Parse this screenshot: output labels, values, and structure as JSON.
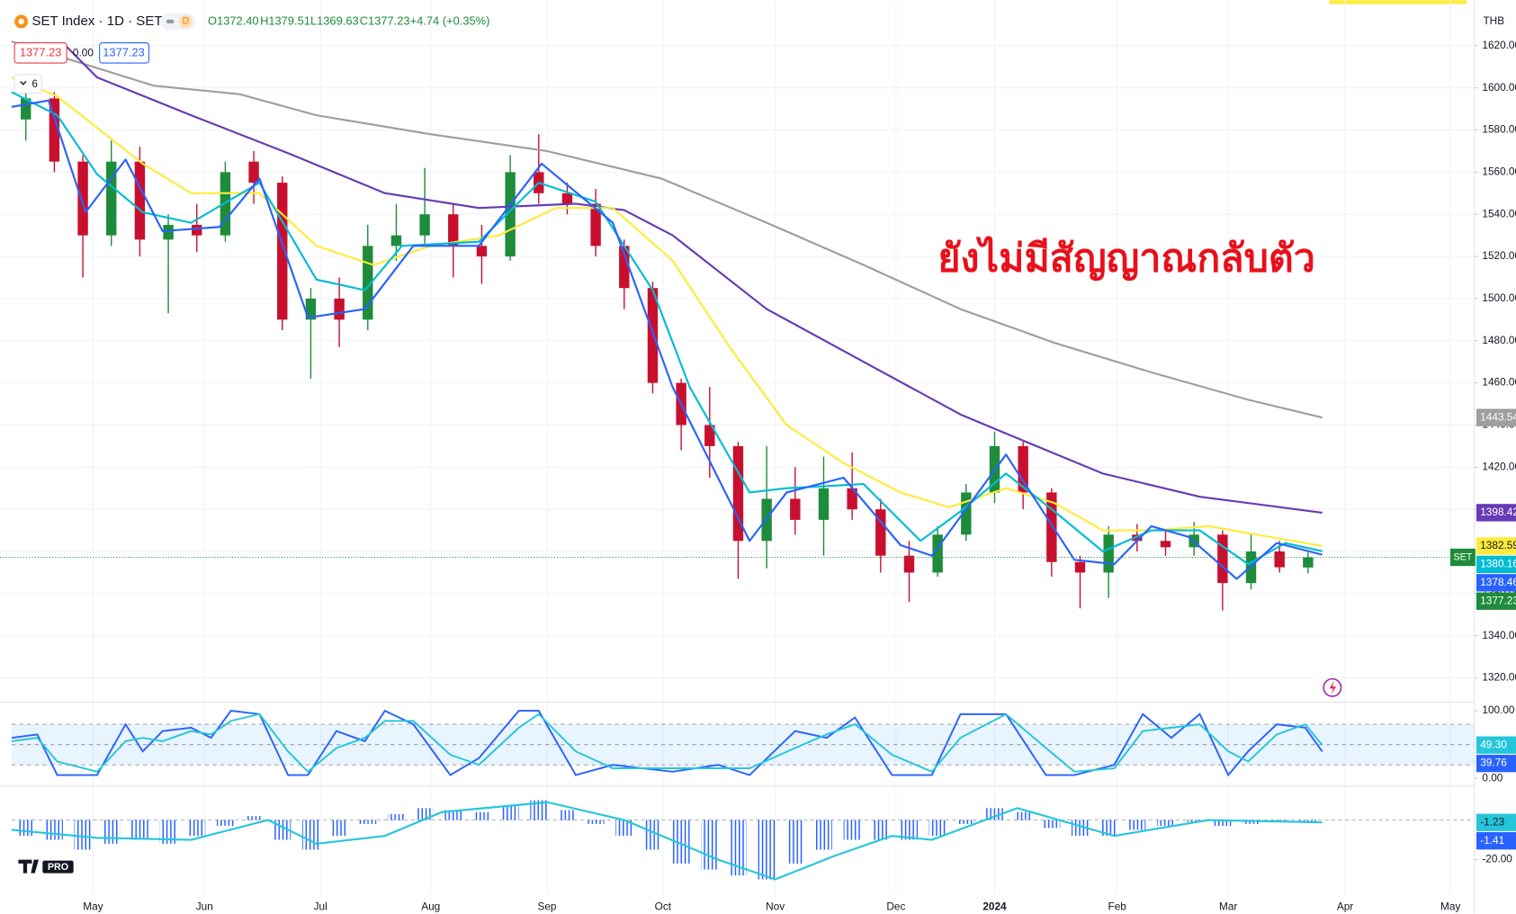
{
  "header": {
    "symbol": "SET Index · 1D · SET",
    "badge": "D",
    "ohlc": [
      "O1372.40",
      "H1379.51",
      "L1369.63",
      "C1377.23"
    ],
    "change": "+4.74 (+0.35%)"
  },
  "trade_panel": {
    "sell": "1377.23",
    "spread": "0.00",
    "buy": "1377.23"
  },
  "indicators_count": "6",
  "currency": "THB",
  "annotation": "ยังไม่มีสัญญาณกลับตัว",
  "logo_badge": "PRO",
  "chart_data": [
    {
      "type": "candlestick",
      "name": "SET",
      "up_color": "#1e8c3a",
      "down_color": "#c8102e",
      "open": [
        1585,
        1595,
        1565,
        1530,
        1565,
        1528,
        1535,
        1530,
        1565,
        1555,
        1490,
        1500,
        1490,
        1525,
        1530,
        1540,
        1525,
        1520,
        1560,
        1550,
        1545,
        1525,
        1505,
        1460,
        1440,
        1430,
        1385,
        1405,
        1395,
        1410,
        1400,
        1378,
        1370,
        1388,
        1408,
        1430,
        1408,
        1375,
        1370,
        1388,
        1385,
        1382,
        1388,
        1365,
        1380,
        1372.4
      ],
      "high": [
        1600,
        1598,
        1568,
        1575,
        1572,
        1540,
        1545,
        1565,
        1570,
        1558,
        1505,
        1510,
        1535,
        1545,
        1562,
        1545,
        1535,
        1568,
        1578,
        1555,
        1552,
        1528,
        1508,
        1462,
        1458,
        1432,
        1430,
        1420,
        1425,
        1427,
        1405,
        1385,
        1392,
        1412,
        1437,
        1432,
        1410,
        1378,
        1392,
        1393,
        1390,
        1394,
        1390,
        1388,
        1385,
        1379.51
      ],
      "low": [
        1575,
        1560,
        1510,
        1525,
        1520,
        1493,
        1522,
        1527,
        1545,
        1485,
        1462,
        1477,
        1485,
        1518,
        1525,
        1510,
        1507,
        1518,
        1545,
        1540,
        1520,
        1495,
        1455,
        1428,
        1415,
        1367,
        1372,
        1388,
        1378,
        1395,
        1370,
        1356,
        1368,
        1385,
        1403,
        1400,
        1368,
        1353,
        1358,
        1380,
        1378,
        1378,
        1352,
        1362,
        1370,
        1369.63
      ],
      "close": [
        1595,
        1565,
        1530,
        1565,
        1528,
        1535,
        1530,
        1560,
        1555,
        1490,
        1500,
        1490,
        1525,
        1530,
        1540,
        1525,
        1520,
        1560,
        1550,
        1545,
        1525,
        1505,
        1460,
        1440,
        1430,
        1385,
        1405,
        1395,
        1410,
        1400,
        1378,
        1370,
        1388,
        1408,
        1430,
        1408,
        1375,
        1370,
        1388,
        1385,
        1382,
        1388,
        1365,
        1380,
        1372.5,
        1377.23
      ],
      "overlays": [
        {
          "color": "#9e9e9e",
          "x": [
            0,
            5.0,
            8.0,
            10.7,
            14.7,
            18.8,
            22.8,
            26.5,
            29.9,
            33.3,
            36.6,
            40.0,
            43.4,
            46.0
          ],
          "values": [
            1622,
            1601,
            1597,
            1587,
            1578,
            1570,
            1557,
            1536,
            1516,
            1495,
            1479,
            1465,
            1452,
            1443.54
          ]
        },
        {
          "color": "#673ab7",
          "x": [
            1.9,
            3.0,
            6.3,
            9.7,
            13.1,
            16.4,
            19.8,
            21.5,
            23.2,
            26.5,
            29.9,
            33.3,
            34.9,
            38.3,
            41.7,
            46.0
          ],
          "values": [
            1620,
            1605,
            1587,
            1569,
            1550,
            1543,
            1545,
            1542,
            1530,
            1495,
            1470,
            1445,
            1436,
            1417,
            1406,
            1398.42
          ]
        },
        {
          "color": "#ffeb3b",
          "x": [
            0,
            1.6,
            4.6,
            6.3,
            8.7,
            10.7,
            12.7,
            14.7,
            17.1,
            19.1,
            21.1,
            23.2,
            25.2,
            27.2,
            29.2,
            31.2,
            32.9,
            34.9,
            36.6,
            38.3,
            40.0,
            42.0,
            46.0
          ],
          "values": [
            1605,
            1596,
            1564,
            1550,
            1550,
            1525,
            1516,
            1525,
            1530,
            1543,
            1543,
            1518,
            1477,
            1440,
            1422,
            1408,
            1401,
            1410,
            1403,
            1390,
            1390,
            1392,
            1382.59
          ]
        },
        {
          "color": "#00bcd4",
          "x": [
            0,
            1.6,
            3.0,
            4.6,
            6.3,
            8.7,
            10.7,
            12.4,
            13.7,
            16.4,
            18.5,
            20.5,
            22.5,
            23.8,
            25.9,
            27.2,
            29.9,
            31.9,
            33.3,
            34.9,
            36.6,
            38.3,
            40.0,
            41.7,
            43.4,
            44.7,
            46.0
          ],
          "values": [
            1598,
            1587,
            1559,
            1541,
            1536,
            1555,
            1509,
            1504,
            1525,
            1527,
            1555,
            1546,
            1504,
            1458,
            1408,
            1410,
            1412,
            1385,
            1399,
            1417,
            1399,
            1380,
            1390,
            1390,
            1374,
            1384,
            1380.16
          ]
        },
        {
          "color": "#2962ff",
          "x": [
            0,
            1.3,
            2.6,
            4.0,
            5.3,
            7.3,
            8.7,
            10.4,
            12.4,
            14.1,
            16.4,
            18.6,
            21.1,
            23.2,
            25.9,
            27.2,
            29.2,
            31.2,
            32.3,
            34.9,
            37.3,
            38.7,
            40.0,
            41.3,
            43.0,
            44.4,
            46.0
          ],
          "values": [
            1591,
            1594,
            1541,
            1566,
            1532,
            1534,
            1557,
            1491,
            1495,
            1525,
            1525,
            1564,
            1536,
            1458,
            1385,
            1408,
            1415,
            1383,
            1378,
            1426,
            1376,
            1374,
            1392,
            1387,
            1367,
            1384,
            1378.46
          ]
        }
      ],
      "xlim": [
        0,
        51
      ],
      "xticks": [
        {
          "value": 2.86,
          "label": "May"
        },
        {
          "value": 6.77,
          "label": "Jun"
        },
        {
          "value": 10.84,
          "label": "Jul"
        },
        {
          "value": 14.71,
          "label": "Aug"
        },
        {
          "value": 18.79,
          "label": "Sep"
        },
        {
          "value": 22.86,
          "label": "Oct"
        },
        {
          "value": 26.8,
          "label": "Nov"
        },
        {
          "value": 31.04,
          "label": "Dec"
        },
        {
          "value": 34.5,
          "label": "2024",
          "bold": true
        },
        {
          "value": 38.8,
          "label": "Feb"
        },
        {
          "value": 42.7,
          "label": "Mar"
        },
        {
          "value": 46.8,
          "label": "Apr"
        },
        {
          "value": 50.5,
          "label": "May"
        }
      ],
      "ylim": [
        1309,
        1637
      ],
      "yticks": [
        {
          "value": 1620,
          "label": "1620.00"
        },
        {
          "value": 1600,
          "label": "1600.00"
        },
        {
          "value": 1580,
          "label": "1580.00"
        },
        {
          "value": 1560,
          "label": "1560.00"
        },
        {
          "value": 1540,
          "label": "1540.00"
        },
        {
          "value": 1520,
          "label": "1520.00"
        },
        {
          "value": 1500,
          "label": "1500.00"
        },
        {
          "value": 1480,
          "label": "1480.00"
        },
        {
          "value": 1460,
          "label": "1460.00"
        },
        {
          "value": 1440,
          "label": "1440.00"
        },
        {
          "value": 1420,
          "label": "1420.00"
        },
        {
          "value": 1400,
          "label": "1400.00"
        },
        {
          "value": 1380,
          "label": "1380.00"
        },
        {
          "value": 1360,
          "label": "1360.00"
        },
        {
          "value": 1340,
          "label": "1340.00"
        },
        {
          "value": 1320,
          "label": "1320.00"
        }
      ],
      "grid": true
    },
    {
      "type": "line",
      "xlim": [
        0,
        51
      ],
      "x": [
        0,
        0.9,
        1.6,
        3.0,
        4.0,
        4.6,
        5.3,
        6.3,
        7.0,
        7.7,
        8.7,
        9.7,
        10.4,
        11.4,
        12.4,
        13.1,
        14.1,
        15.4,
        16.4,
        17.8,
        18.5,
        19.8,
        21.1,
        23.2,
        24.8,
        25.9,
        27.5,
        28.6,
        29.6,
        30.9,
        32.3,
        33.3,
        34.9,
        36.3,
        37.3,
        38.7,
        39.7,
        40.7,
        41.7,
        42.7,
        43.4,
        44.4,
        45.4,
        46.0
      ],
      "series": [
        {
          "color": "#2962ff",
          "values": [
            60,
            65,
            5,
            5,
            80,
            40,
            70,
            75,
            60,
            100,
            95,
            5,
            5,
            70,
            55,
            100,
            80,
            5,
            30,
            100,
            100,
            5,
            20,
            10,
            20,
            5,
            70,
            60,
            90,
            5,
            5,
            95,
            95,
            5,
            5,
            20,
            95,
            60,
            95,
            5,
            40,
            80,
            75,
            39.76
          ]
        },
        {
          "color": "#26c6da",
          "values": [
            55,
            60,
            25,
            10,
            55,
            60,
            55,
            70,
            65,
            85,
            95,
            40,
            10,
            45,
            60,
            85,
            85,
            35,
            20,
            75,
            95,
            40,
            15,
            15,
            15,
            15,
            45,
            65,
            80,
            35,
            10,
            60,
            95,
            45,
            10,
            15,
            70,
            75,
            80,
            40,
            25,
            65,
            80,
            49.3
          ],
          "last_label": "49.30"
        }
      ],
      "levels": [
        20,
        50,
        80
      ],
      "band_color": "rgba(33,150,243,0.10)",
      "ylim": [
        -10,
        111.4
      ],
      "yticks": [
        {
          "value": 100,
          "label": "100.00"
        },
        {
          "value": 0,
          "label": "0.00"
        }
      ]
    },
    {
      "type": "bar",
      "xlim": [
        0,
        51
      ],
      "color": "#2962ff",
      "values": [
        -8,
        -10,
        -15,
        -12,
        -10,
        -12,
        -8,
        -3,
        2,
        -10,
        -15,
        -8,
        -2,
        3,
        6,
        5,
        4,
        7,
        10,
        5,
        -2,
        -8,
        -15,
        -22,
        -25,
        -28,
        -30,
        -22,
        -15,
        -10,
        -10,
        -10,
        -8,
        -2,
        6,
        4,
        -4,
        -8,
        -8,
        -5,
        -3,
        -1,
        -3,
        -2,
        -1,
        -1.41
      ],
      "line": {
        "color": "#26c6da",
        "x": [
          0,
          3.0,
          6.3,
          9.0,
          10.7,
          13.1,
          15.1,
          18.8,
          21.5,
          24.8,
          26.8,
          28.9,
          30.9,
          32.3,
          35.3,
          38.7,
          42.0,
          46.0
        ],
        "values": [
          -5,
          -9,
          -10,
          0,
          -12,
          -8,
          4,
          9,
          0,
          -20,
          -30,
          -18,
          -8,
          -10,
          6,
          -8,
          0,
          -1.23
        ]
      },
      "levels": [
        0
      ],
      "ylim": [
        -37.6,
        16.6
      ],
      "yticks": [
        {
          "value": -20,
          "label": "-20.00"
        }
      ]
    }
  ]
}
